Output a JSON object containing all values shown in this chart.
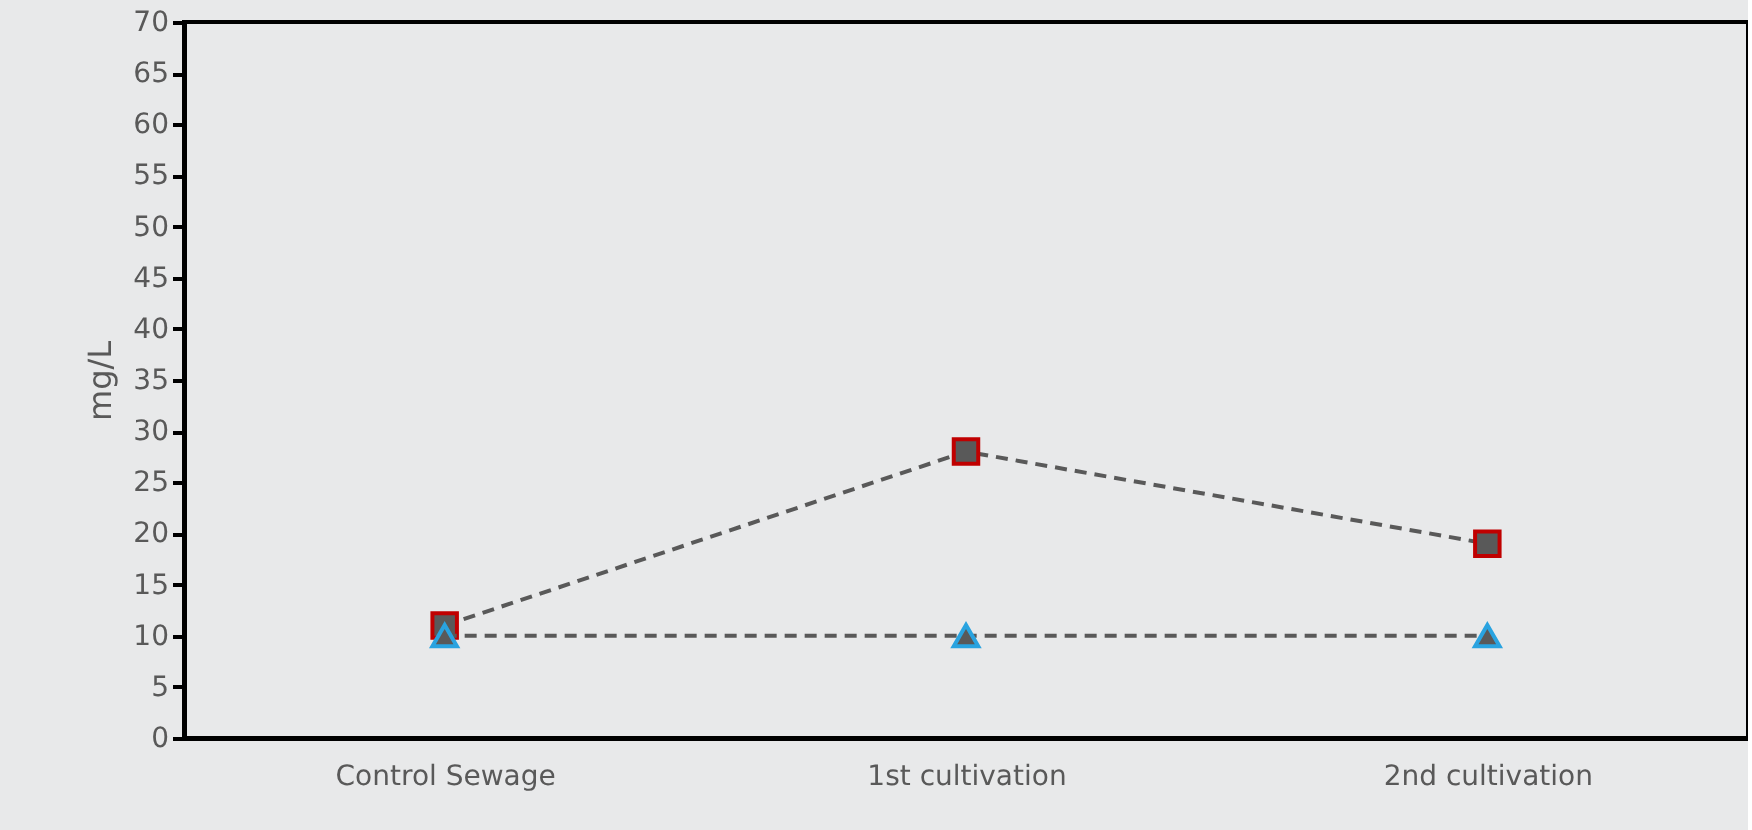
{
  "chart_data": {
    "type": "line",
    "ylabel": "mg/L",
    "categories": [
      "Control Sewage",
      "1st cultivation",
      "2nd cultivation"
    ],
    "series": [
      {
        "color": "#c00000",
        "marker": "square",
        "values": [
          11,
          28,
          19
        ]
      },
      {
        "color": "#29a3e0",
        "marker": "triangle",
        "values": [
          10,
          10,
          10
        ]
      }
    ],
    "ylim": [
      0,
      70
    ],
    "yticks": [
      0,
      5,
      10,
      15,
      20,
      25,
      30,
      35,
      40,
      45,
      50,
      55,
      60,
      65,
      70
    ],
    "line_style": "dashed",
    "grid": false,
    "legend": false
  }
}
